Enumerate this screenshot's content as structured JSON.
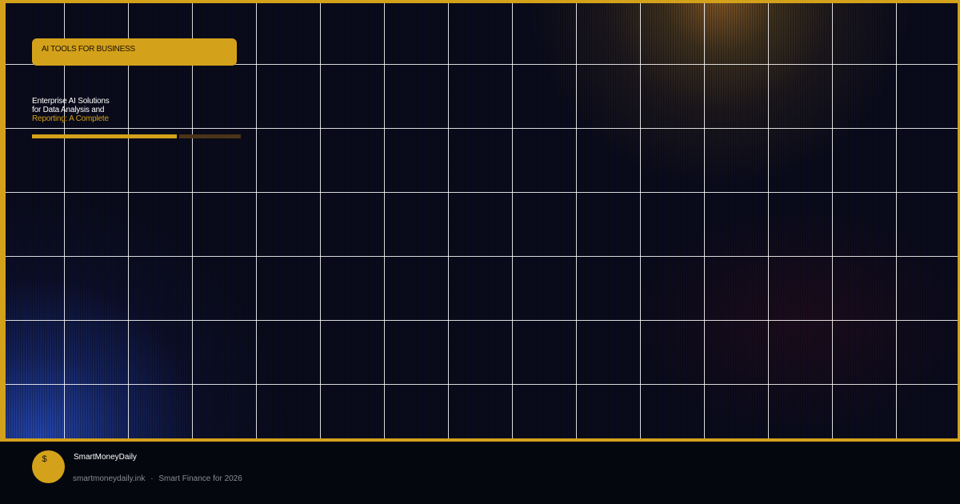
{
  "hero": {
    "badge": "AI TOOLS FOR BUSINESS",
    "title_lines": [
      "Enterprise AI Solutions",
      "for Data Analysis and"
    ],
    "title_accent": "Reporting: A Complete",
    "progress_percent": 70
  },
  "footer": {
    "logo_symbol": "$",
    "brand": "SmartMoneyDaily",
    "domain": "smartmoneydaily.ink",
    "separator": "·",
    "tagline": "Smart Finance for 2026"
  },
  "colors": {
    "accent": "#d4a11a",
    "background": "#0a0b1c",
    "footer": "#05070f"
  }
}
